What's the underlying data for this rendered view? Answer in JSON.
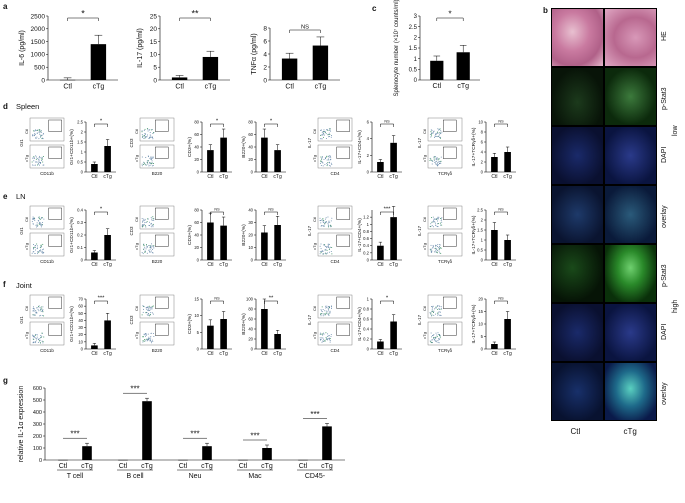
{
  "panel_labels": {
    "a": "a",
    "b": "b",
    "c": "c",
    "d": "d",
    "e": "e",
    "f": "f",
    "g": "g"
  },
  "row_labels": {
    "spleen": "Spleen",
    "ln": "LN",
    "joint": "Joint"
  },
  "groups": [
    "Ctl",
    "cTg"
  ],
  "sig": {
    "one": "*",
    "two": "**",
    "three": "***",
    "ns": "NS"
  },
  "panel_a": [
    {
      "ylabel": "IL-6 (pg/ml)",
      "ticks": [
        "0",
        "500",
        "1000",
        "1500",
        "2000",
        "2500"
      ],
      "ymax": 2500,
      "values": [
        5,
        1400
      ],
      "sig": "*"
    },
    {
      "ylabel": "IL-17 (pg/ml)",
      "ticks": [
        "0",
        "5",
        "10",
        "15",
        "20",
        "25"
      ],
      "ymax": 25,
      "values": [
        1,
        9
      ],
      "sig": "**"
    },
    {
      "ylabel": "TNFα (pg/ml)",
      "ticks": [
        "0",
        "2",
        "4",
        "6",
        "8"
      ],
      "ymax": 8,
      "values": [
        3.3,
        5.3
      ],
      "sig": "NS"
    }
  ],
  "panel_c": {
    "ylabel": "Splenocyte number (×10⁷ counts/ml)",
    "ticks": [
      "0",
      "0.5",
      "1",
      "1.5",
      "2",
      "2.5",
      "3"
    ],
    "ymax": 3,
    "values": [
      0.9,
      1.3
    ],
    "sig": "*"
  },
  "panel_b": {
    "col_labels": [
      "Ctl",
      "cTg"
    ],
    "rows": [
      {
        "label": "HE",
        "type": "he"
      },
      {
        "label": "p-Stat3",
        "type": "green"
      },
      {
        "label": "DAPI",
        "type": "blue"
      },
      {
        "label": "overlay",
        "type": "overlay"
      },
      {
        "label": "p-Stat3",
        "type": "green2"
      },
      {
        "label": "DAPI",
        "type": "blue"
      },
      {
        "label": "overlay",
        "type": "overlay2"
      }
    ],
    "mag_labels": {
      "low": "low",
      "high": "high"
    }
  },
  "flow_axes": {
    "gr1": "Gr1",
    "cd11b": "CD11b",
    "cd3": "CD3",
    "b220": "B220",
    "il17": "IL-17",
    "cd4": "CD4",
    "tcrgd": "TCRγδ"
  },
  "bar_ylabels": {
    "gr1cd11b": "Gr1+CD11b+(%)",
    "cd3": "CD3+(%)",
    "b220": "B220+(%)",
    "il17cd4": "IL-17+CD4+(%)",
    "il17tcr": "IL-17+TCRγδ+(%)"
  },
  "small_bars": {
    "d": [
      {
        "ticks": [
          "0",
          "0.5",
          "1",
          "1.5",
          "2",
          "2.5"
        ],
        "ymax": 2.5,
        "values": [
          0.4,
          1.3
        ],
        "sig": "*"
      },
      {
        "ticks": [
          "0",
          "20",
          "40",
          "60",
          "80"
        ],
        "ymax": 80,
        "values": [
          35,
          55
        ],
        "sig": "*"
      },
      {
        "ticks": [
          "0",
          "20",
          "40",
          "60",
          "80"
        ],
        "ymax": 80,
        "values": [
          55,
          35
        ],
        "sig": "*"
      },
      {
        "ticks": [
          "0",
          "2",
          "4",
          "6"
        ],
        "ymax": 6,
        "values": [
          1.2,
          3.5
        ],
        "sig": "NS"
      },
      {
        "ticks": [
          "0",
          "2",
          "4",
          "6",
          "8",
          "10"
        ],
        "ymax": 10,
        "values": [
          3,
          4
        ],
        "sig": "NS"
      }
    ],
    "e": [
      {
        "ticks": [
          "0",
          "0.1",
          "0.2",
          "0.3",
          "0.4"
        ],
        "ymax": 0.4,
        "values": [
          0.06,
          0.2
        ],
        "sig": "*"
      },
      {
        "ticks": [
          "0",
          "20",
          "40",
          "60",
          "80"
        ],
        "ymax": 80,
        "values": [
          60,
          55
        ],
        "sig": "NS"
      },
      {
        "ticks": [
          "0",
          "10",
          "20",
          "30",
          "40"
        ],
        "ymax": 40,
        "values": [
          22,
          28
        ],
        "sig": "NS"
      },
      {
        "ticks": [
          "0",
          "0.2",
          "0.4",
          "0.6",
          "0.8",
          "1",
          "1.2"
        ],
        "ymax": 1.4,
        "values": [
          0.4,
          1.2
        ],
        "sig": "***"
      },
      {
        "ticks": [
          "0",
          "0.5",
          "1",
          "1.5",
          "2",
          "2.5"
        ],
        "ymax": 2.5,
        "values": [
          1.5,
          1.0
        ],
        "sig": "NS"
      }
    ],
    "f": [
      {
        "ticks": [
          "0",
          "10",
          "20",
          "30",
          "40",
          "50",
          "60",
          "70"
        ],
        "ymax": 70,
        "values": [
          5,
          40
        ],
        "sig": "***"
      },
      {
        "ticks": [
          "0",
          "5",
          "10",
          "15"
        ],
        "ymax": 15,
        "values": [
          7,
          9
        ],
        "sig": "NS"
      },
      {
        "ticks": [
          "0",
          "20",
          "40",
          "60",
          "80",
          "100"
        ],
        "ymax": 100,
        "values": [
          80,
          30
        ],
        "sig": "**"
      },
      {
        "ticks": [
          "0",
          "0.2",
          "0.4",
          "0.6",
          "0.8",
          "1"
        ],
        "ymax": 1,
        "values": [
          0.15,
          0.55
        ],
        "sig": "*"
      },
      {
        "ticks": [
          "0",
          "5",
          "10",
          "15",
          "20"
        ],
        "ymax": 20,
        "values": [
          2,
          12
        ],
        "sig": "NS"
      }
    ]
  },
  "chart_data": {
    "type": "bar",
    "title": "",
    "ylabel": "relative IL-1α expression",
    "ticks": [
      "0",
      "100",
      "200",
      "300",
      "400",
      "500",
      "600"
    ],
    "ylim": [
      0,
      600
    ],
    "categories": [
      "T cell",
      "B cell",
      "Neu",
      "Mac",
      "CD45-"
    ],
    "series": [
      {
        "name": "Ctl",
        "values": [
          1,
          1,
          1,
          1,
          1
        ]
      },
      {
        "name": "cTg",
        "values": [
          115,
          490,
          115,
          100,
          280
        ]
      }
    ],
    "sig": [
      "***",
      "***",
      "***",
      "***",
      "***"
    ]
  }
}
